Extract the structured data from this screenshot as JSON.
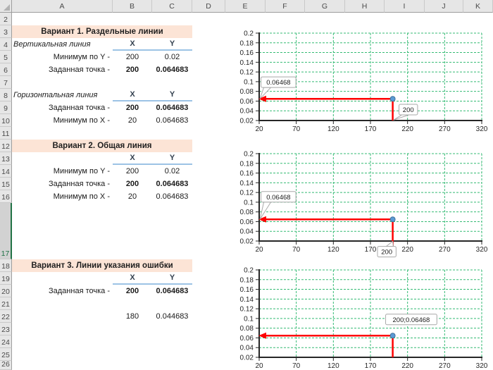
{
  "grid": {
    "column_labels": [
      "A",
      "B",
      "C",
      "D",
      "E",
      "F",
      "G",
      "H",
      "I",
      "J",
      "K"
    ],
    "row_labels": [
      "2",
      "3",
      "4",
      "5",
      "6",
      "7",
      "8",
      "9",
      "10",
      "11",
      "12",
      "13",
      "14",
      "15",
      "16",
      "17",
      "18",
      "19",
      "20",
      "21",
      "22",
      "23",
      "24",
      "25",
      "26"
    ],
    "selected_row": "17"
  },
  "sheet": {
    "cells": [
      {
        "r": "3",
        "c": "A",
        "span": 3,
        "text": "Вариант 1. Раздельные линии",
        "style": "title"
      },
      {
        "r": "4",
        "c": "A",
        "text": "Вертикальная линия",
        "style": "ilabel"
      },
      {
        "r": "4",
        "c": "B",
        "text": "X",
        "style": "xyhdr"
      },
      {
        "r": "4",
        "c": "C",
        "text": "Y",
        "style": "xyhdr"
      },
      {
        "r": "5",
        "c": "A",
        "text": "Минимум по Y -",
        "style": "rlabel"
      },
      {
        "r": "5",
        "c": "B",
        "text": "200",
        "style": "val"
      },
      {
        "r": "5",
        "c": "C",
        "text": "0.02",
        "style": "val"
      },
      {
        "r": "6",
        "c": "A",
        "text": "Заданная точка -",
        "style": "rlabel"
      },
      {
        "r": "6",
        "c": "B",
        "text": "200",
        "style": "valb"
      },
      {
        "r": "6",
        "c": "C",
        "text": "0.064683",
        "style": "valb"
      },
      {
        "r": "8",
        "c": "A",
        "text": "Горизонтальная линия",
        "style": "ilabel"
      },
      {
        "r": "8",
        "c": "B",
        "text": "X",
        "style": "xyhdr"
      },
      {
        "r": "8",
        "c": "C",
        "text": "Y",
        "style": "xyhdr"
      },
      {
        "r": "9",
        "c": "A",
        "text": "Заданная точка -",
        "style": "rlabel"
      },
      {
        "r": "9",
        "c": "B",
        "text": "200",
        "style": "valb"
      },
      {
        "r": "9",
        "c": "C",
        "text": "0.064683",
        "style": "valb"
      },
      {
        "r": "10",
        "c": "A",
        "text": "Минимум по X -",
        "style": "rlabel"
      },
      {
        "r": "10",
        "c": "B",
        "text": "20",
        "style": "val"
      },
      {
        "r": "10",
        "c": "C",
        "text": "0.064683",
        "style": "val"
      },
      {
        "r": "12",
        "c": "A",
        "span": 3,
        "text": "Вариант 2. Общая линия",
        "style": "title"
      },
      {
        "r": "13",
        "c": "B",
        "text": "X",
        "style": "xyhdr"
      },
      {
        "r": "13",
        "c": "C",
        "text": "Y",
        "style": "xyhdr"
      },
      {
        "r": "14",
        "c": "A",
        "text": "Минимум по Y -",
        "style": "rlabel"
      },
      {
        "r": "14",
        "c": "B",
        "text": "200",
        "style": "val"
      },
      {
        "r": "14",
        "c": "C",
        "text": "0.02",
        "style": "val"
      },
      {
        "r": "15",
        "c": "A",
        "text": "Заданная точка -",
        "style": "rlabel"
      },
      {
        "r": "15",
        "c": "B",
        "text": "200",
        "style": "valb"
      },
      {
        "r": "15",
        "c": "C",
        "text": "0.064683",
        "style": "valb"
      },
      {
        "r": "16",
        "c": "A",
        "text": "Минимум по X -",
        "style": "rlabel"
      },
      {
        "r": "16",
        "c": "B",
        "text": "20",
        "style": "val"
      },
      {
        "r": "16",
        "c": "C",
        "text": "0.064683",
        "style": "val"
      },
      {
        "r": "18",
        "c": "A",
        "span": 3,
        "text": "Вариант 3. Линии указания ошибки",
        "style": "title"
      },
      {
        "r": "19",
        "c": "B",
        "text": "X",
        "style": "xyhdr"
      },
      {
        "r": "19",
        "c": "C",
        "text": "Y",
        "style": "xyhdr"
      },
      {
        "r": "20",
        "c": "A",
        "text": "Заданная точка -",
        "style": "rlabel"
      },
      {
        "r": "20",
        "c": "B",
        "text": "200",
        "style": "valb"
      },
      {
        "r": "20",
        "c": "C",
        "text": "0.064683",
        "style": "valb"
      },
      {
        "r": "22",
        "c": "B",
        "text": "180",
        "style": "val"
      },
      {
        "r": "22",
        "c": "C",
        "text": "0.044683",
        "style": "val"
      }
    ]
  },
  "colors": {
    "section_header_bg": "#FCE4D6",
    "xy_underline": "#9CC3E5",
    "grid_green": "#35BB74",
    "indicator_red": "#FF0000",
    "marker_blue": "#5B9BD5",
    "marker_border": "#41719C",
    "axis_black": "#262626",
    "callout_border": "#A9A9A9",
    "selection_green": "#217346"
  },
  "chart_data": [
    {
      "type": "scatter",
      "title": "",
      "variant": "Вариант 1. Раздельные линии",
      "xlim": [
        20,
        320
      ],
      "ylim": [
        0.02,
        0.2
      ],
      "x_ticks": [
        20,
        70,
        120,
        170,
        220,
        270,
        320
      ],
      "y_ticks": [
        0.02,
        0.04,
        0.06,
        0.08,
        0.1,
        0.12,
        0.14,
        0.16,
        0.18,
        0.2
      ],
      "grid": true,
      "legend": "none",
      "points": [
        {
          "x": 200,
          "y": 0.064683
        }
      ],
      "lines": [
        {
          "x1": 200,
          "y1": 0.064683,
          "x2": 20,
          "y2": 0.064683,
          "arrow_end": true
        },
        {
          "x1": 200,
          "y1": 0.064683,
          "x2": 200,
          "y2": 0.02,
          "arrow_end": false
        }
      ],
      "callouts": [
        {
          "text": "0.06468",
          "center": [
            46,
            0.099
          ],
          "tail": [
            21,
            0.0647
          ],
          "side": "bl"
        },
        {
          "text": "200",
          "center": [
            221,
            0.0425
          ],
          "tail": [
            201,
            0.021
          ],
          "side": "bl"
        }
      ]
    },
    {
      "type": "scatter",
      "title": "",
      "variant": "Вариант 2. Общая линия",
      "xlim": [
        20,
        320
      ],
      "ylim": [
        0.02,
        0.2
      ],
      "x_ticks": [
        20,
        70,
        120,
        170,
        220,
        270,
        320
      ],
      "y_ticks": [
        0.02,
        0.04,
        0.06,
        0.08,
        0.1,
        0.12,
        0.14,
        0.16,
        0.18,
        0.2
      ],
      "grid": true,
      "legend": "none",
      "points": [
        {
          "x": 200,
          "y": 0.064683
        }
      ],
      "lines": [
        {
          "x1": 200,
          "y1": 0.064683,
          "x2": 20,
          "y2": 0.064683,
          "arrow_end": true
        },
        {
          "x1": 200,
          "y1": 0.064683,
          "x2": 200,
          "y2": 0.0085,
          "arrow_end": false
        }
      ],
      "callouts": [
        {
          "text": "0.06468",
          "center": [
            46,
            0.111
          ],
          "tail": [
            21,
            0.0647
          ],
          "side": "bl"
        },
        {
          "text": "200",
          "center": [
            192,
            -0.002
          ],
          "tail": [
            200,
            0.0195
          ],
          "side": "tr"
        }
      ]
    },
    {
      "type": "scatter",
      "title": "",
      "variant": "Вариант 3. Линии указания ошибки",
      "xlim": [
        20,
        320
      ],
      "ylim": [
        0.02,
        0.2
      ],
      "x_ticks": [
        20,
        70,
        120,
        170,
        220,
        270,
        320
      ],
      "y_ticks": [
        0.02,
        0.04,
        0.06,
        0.08,
        0.1,
        0.12,
        0.14,
        0.16,
        0.18,
        0.2
      ],
      "grid": true,
      "legend": "none",
      "points": [
        {
          "x": 200,
          "y": 0.064683
        }
      ],
      "lines": [
        {
          "x1": 200,
          "y1": 0.064683,
          "x2": 20,
          "y2": 0.064683,
          "arrow_end": true
        },
        {
          "x1": 200,
          "y1": 0.064683,
          "x2": 200,
          "y2": 0.02,
          "arrow_end": false
        }
      ],
      "callouts": [
        {
          "text": "200;0.06468",
          "center": [
            225,
            0.098
          ],
          "tail": null,
          "side": null
        }
      ]
    }
  ]
}
